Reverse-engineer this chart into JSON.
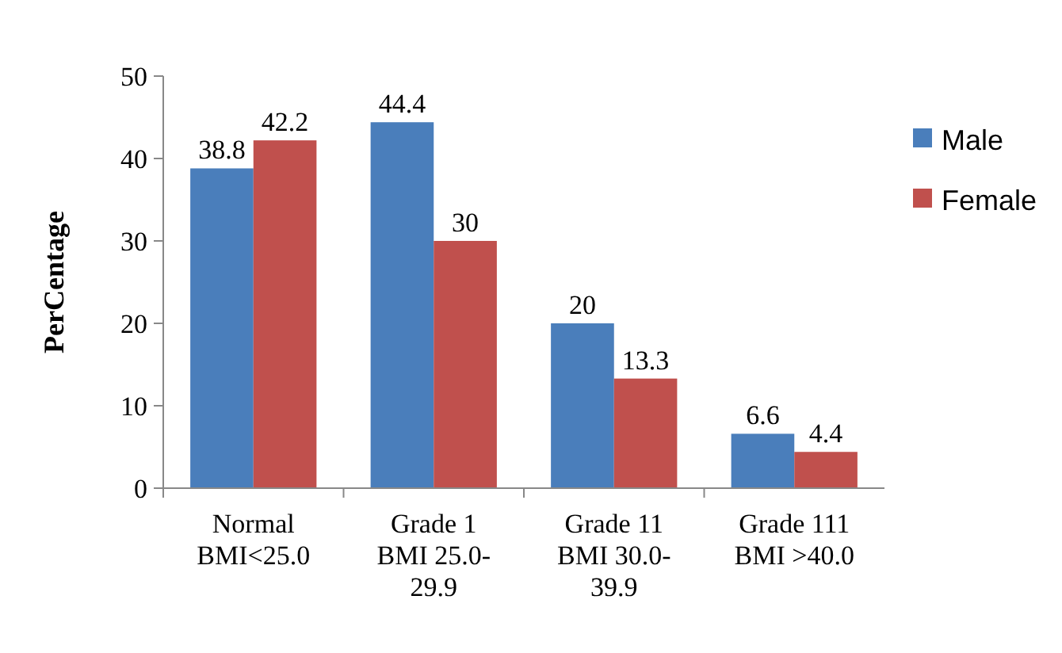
{
  "chart_data": {
    "type": "bar",
    "ylabel": "PerCentage",
    "categories": [
      "Normal\nBMI<25.0",
      "Grade 1\nBMI 25.0-\n29.9",
      "Grade 11\nBMI 30.0-\n39.9",
      "Grade 111\nBMI >40.0"
    ],
    "series": [
      {
        "name": "Male",
        "color": "#4a7ebb",
        "values": [
          38.8,
          44.4,
          20,
          6.6
        ]
      },
      {
        "name": "Female",
        "color": "#c0504d",
        "values": [
          42.2,
          30,
          13.3,
          4.4
        ]
      }
    ],
    "ylim": [
      0,
      50
    ],
    "yticks": [
      0,
      10,
      20,
      30,
      40,
      50
    ],
    "data_labels": true,
    "legend": "right"
  }
}
